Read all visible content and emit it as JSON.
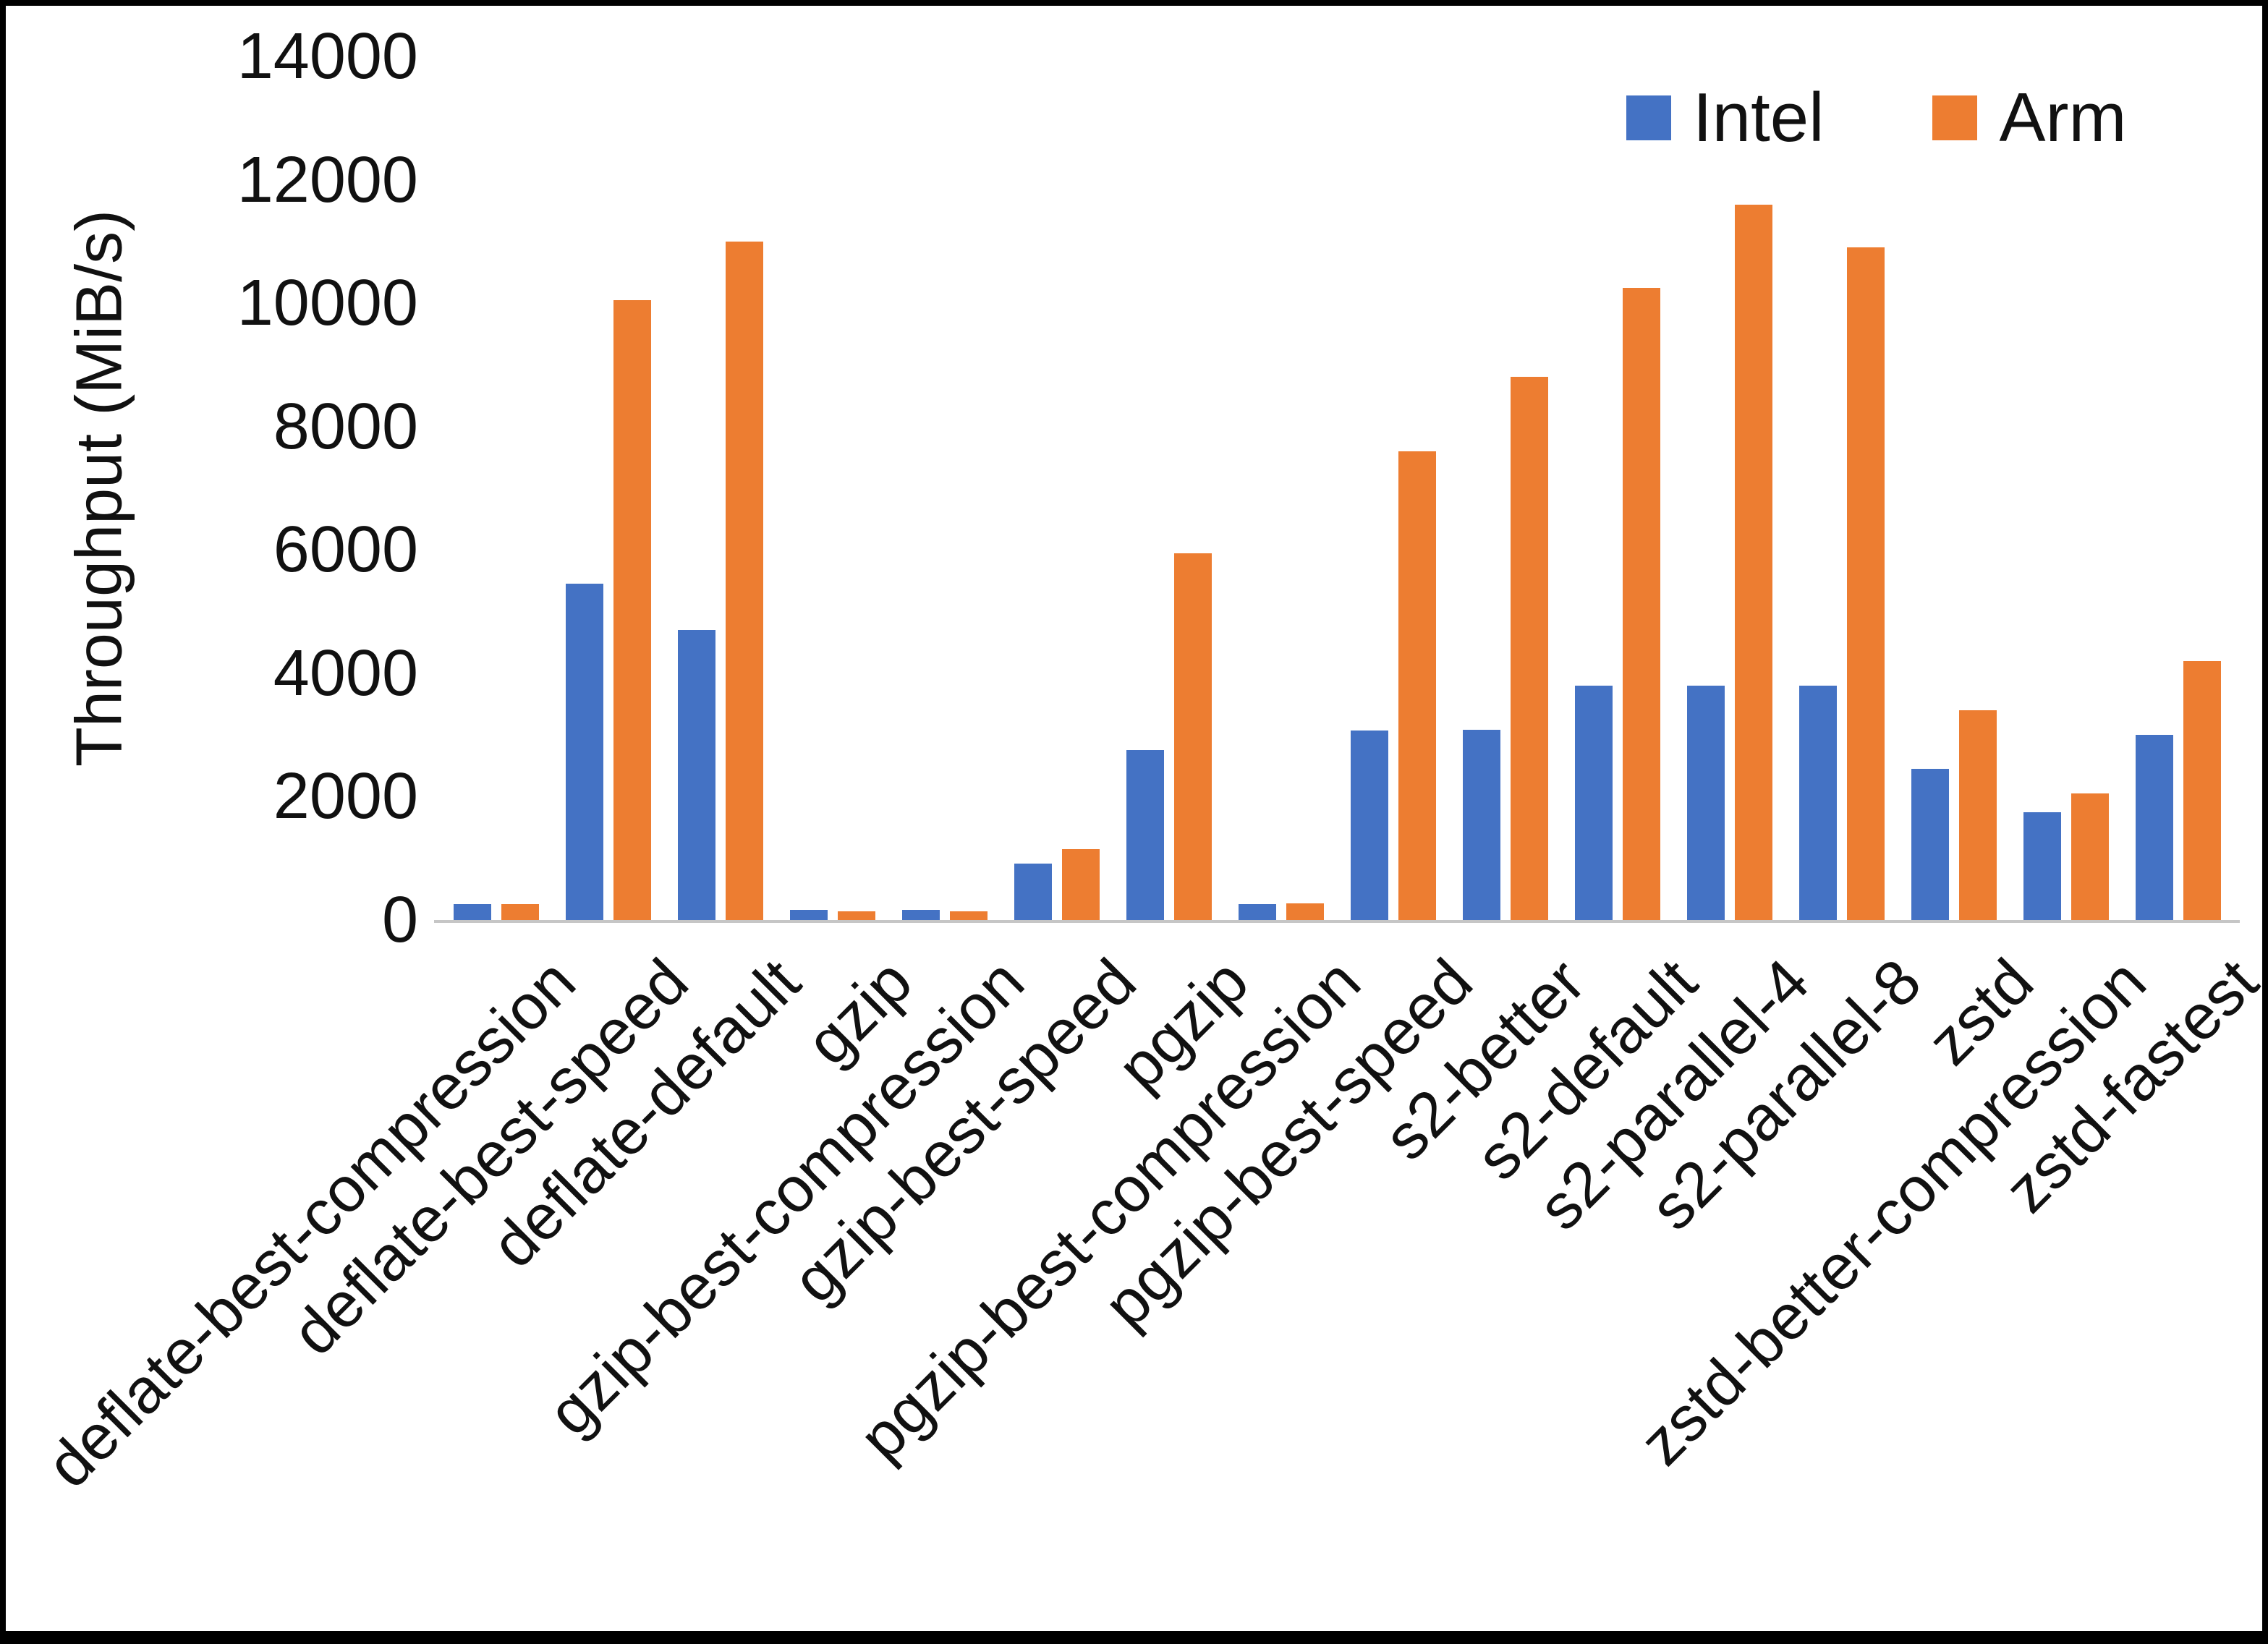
{
  "chart_data": {
    "type": "bar",
    "title": "",
    "xlabel": "",
    "ylabel": "Throughput (MiB/s)",
    "ylim": [
      0,
      14000
    ],
    "ytick_step": 2000,
    "grid": false,
    "legend_position": "top-right",
    "categories": [
      "deflate-best-compression",
      "deflate-best-speed",
      "deflate-default",
      "gzip",
      "gzip-best-compression",
      "gzip-best-speed",
      "pgzip",
      "pgzip-best-compression",
      "pgzip-best-speed",
      "s2-better",
      "s2-default",
      "s2-parallel-4",
      "s2-parallel-8",
      "zstd",
      "zstd-better-compression",
      "zstd-fastest"
    ],
    "series": [
      {
        "name": "Intel",
        "color": "#4472C4",
        "values": [
          260,
          5450,
          4700,
          160,
          160,
          910,
          2760,
          260,
          3070,
          3080,
          3800,
          3800,
          3800,
          2450,
          1750,
          3000
        ]
      },
      {
        "name": "Arm",
        "color": "#ED7D31",
        "values": [
          260,
          10050,
          11000,
          140,
          140,
          1150,
          5950,
          270,
          7600,
          8800,
          10250,
          11600,
          10900,
          3400,
          2050,
          4200
        ]
      }
    ]
  }
}
